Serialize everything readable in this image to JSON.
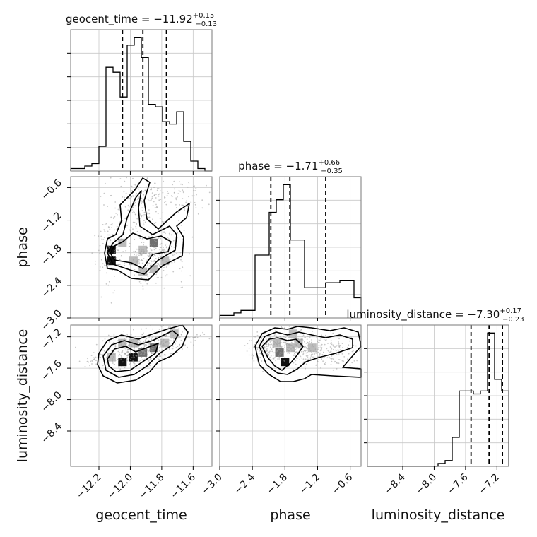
{
  "chart_data": {
    "type": "corner",
    "parameters": [
      "geocent_time",
      "phase",
      "luminosity_distance"
    ],
    "axis_labels": {
      "x": [
        "geocent_time",
        "phase",
        "luminosity_distance"
      ],
      "y": [
        "phase",
        "luminosity_distance"
      ]
    },
    "titles": [
      {
        "param": "geocent_time",
        "text": "geocent_time = −11.92",
        "plus": "+0.15",
        "minus": "−0.13"
      },
      {
        "param": "phase",
        "text": "phase = −1.71",
        "plus": "+0.66",
        "minus": "−0.35"
      },
      {
        "param": "luminosity_distance",
        "text": "luminosity_distance = −7.30",
        "plus": "+0.17",
        "minus": "−0.23"
      }
    ],
    "ranges": {
      "geocent_time": [
        -12.38,
        -11.48
      ],
      "phase": [
        -3.0,
        -0.4
      ],
      "luminosity_distance": [
        -8.85,
        -7.05
      ]
    },
    "ticks": {
      "geocent_time": {
        "values": [
          -12.2,
          -12.0,
          -11.8,
          -11.6
        ],
        "labels": [
          "−12.2",
          "−12.0",
          "−11.8",
          "−11.6"
        ]
      },
      "phase": {
        "values": [
          -3.0,
          -2.4,
          -1.8,
          -1.2,
          -0.6
        ],
        "labels": [
          "−3.0",
          "−2.4",
          "−1.8",
          "−1.2",
          "−0.6"
        ]
      },
      "luminosity_distance": {
        "values": [
          -8.4,
          -8.0,
          -7.6,
          -7.2
        ],
        "labels": [
          "−8.4",
          "−8.0",
          "−7.6",
          "−7.2"
        ]
      }
    },
    "quantiles": {
      "geocent_time": [
        -12.05,
        -11.92,
        -11.77
      ],
      "phase": [
        -2.06,
        -1.71,
        -1.05
      ],
      "luminosity_distance": [
        -7.53,
        -7.3,
        -7.13
      ]
    },
    "histograms": {
      "geocent_time": {
        "edges": [
          -12.38,
          -12.335,
          -12.29,
          -12.245,
          -12.2,
          -12.155,
          -12.11,
          -12.065,
          -12.02,
          -11.975,
          -11.93,
          -11.885,
          -11.84,
          -11.795,
          -11.75,
          -11.705,
          -11.66,
          -11.615,
          -11.57,
          -11.525,
          -11.48
        ],
        "counts": [
          1,
          1,
          2,
          3,
          10,
          42,
          40,
          30,
          51,
          54,
          46,
          27,
          26,
          20,
          19,
          24,
          12,
          4,
          1,
          0
        ]
      },
      "phase": {
        "edges": [
          -3.0,
          -2.87,
          -2.74,
          -2.61,
          -2.48,
          -2.35,
          -2.22,
          -2.09,
          -1.96,
          -1.83,
          -1.7,
          -1.57,
          -1.44,
          -1.31,
          -1.18,
          -1.05,
          -0.92,
          -0.79,
          -0.66,
          -0.53,
          -0.4
        ],
        "counts": [
          1,
          1,
          2,
          3,
          3,
          25,
          25,
          42,
          47,
          53,
          31,
          31,
          12,
          12,
          12,
          14,
          14,
          15,
          15,
          8
        ]
      },
      "luminosity_distance": {
        "edges": [
          -8.85,
          -8.76,
          -8.67,
          -8.58,
          -8.49,
          -8.4,
          -8.31,
          -8.22,
          -8.13,
          -8.04,
          -7.95,
          -7.86,
          -7.77,
          -7.68,
          -7.59,
          -7.5,
          -7.41,
          -7.32,
          -7.23,
          -7.14,
          -7.05
        ],
        "counts": [
          0,
          0,
          0,
          0,
          0,
          0,
          0,
          0,
          0,
          0,
          1,
          2,
          10,
          26,
          26,
          25,
          26,
          46,
          30,
          26
        ]
      }
    },
    "grid": true
  }
}
